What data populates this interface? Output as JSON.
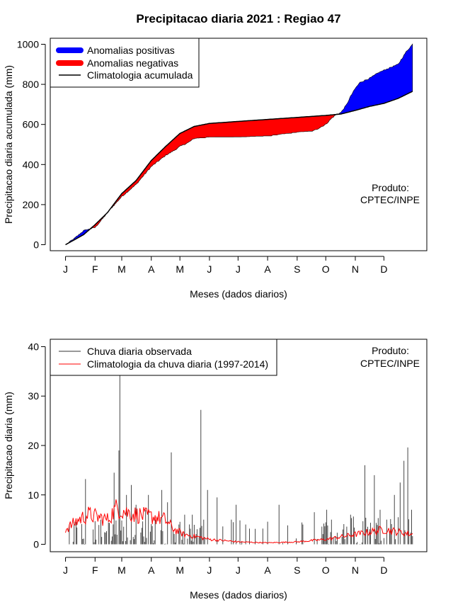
{
  "title": "Precipitacao diaria 2021 : Regiao 47",
  "colors": {
    "positive": "#0000ff",
    "negative": "#ff0000",
    "observed": "#333333",
    "climatology": "#ff0000"
  },
  "months": [
    "J",
    "F",
    "M",
    "A",
    "M",
    "J",
    "J",
    "A",
    "S",
    "O",
    "N",
    "D"
  ],
  "chart_data": [
    {
      "type": "area",
      "xlabel": "Meses (dados diarios)",
      "ylabel": "Precipitacao diaria acumulada (mm)",
      "yticks": [
        0,
        200,
        400,
        600,
        800,
        1000
      ],
      "ylim": [
        -30,
        1030
      ],
      "xlim": [
        -15,
        380
      ],
      "month_start_days": [
        1,
        32,
        60,
        91,
        121,
        152,
        182,
        213,
        244,
        274,
        305,
        335
      ],
      "legend": [
        "Anomalias positivas",
        "Anomalias negativas",
        "Climatologia acumulada"
      ],
      "credit": [
        "Produto:",
        "CPTEC/INPE"
      ],
      "climatology_keypoints": [
        [
          1,
          0
        ],
        [
          20,
          50
        ],
        [
          32,
          100
        ],
        [
          45,
          160
        ],
        [
          60,
          255
        ],
        [
          75,
          320
        ],
        [
          91,
          420
        ],
        [
          106,
          490
        ],
        [
          121,
          555
        ],
        [
          136,
          590
        ],
        [
          152,
          605
        ],
        [
          182,
          615
        ],
        [
          213,
          625
        ],
        [
          244,
          635
        ],
        [
          274,
          645
        ],
        [
          290,
          652
        ],
        [
          305,
          670
        ],
        [
          320,
          690
        ],
        [
          335,
          705
        ],
        [
          350,
          730
        ],
        [
          365,
          765
        ]
      ],
      "observed_keypoints": [
        [
          1,
          0
        ],
        [
          10,
          30
        ],
        [
          20,
          70
        ],
        [
          32,
          85
        ],
        [
          40,
          130
        ],
        [
          45,
          160
        ],
        [
          60,
          240
        ],
        [
          75,
          300
        ],
        [
          91,
          390
        ],
        [
          106,
          445
        ],
        [
          115,
          470
        ],
        [
          121,
          490
        ],
        [
          130,
          510
        ],
        [
          136,
          530
        ],
        [
          152,
          535
        ],
        [
          170,
          535
        ],
        [
          182,
          535
        ],
        [
          200,
          540
        ],
        [
          213,
          540
        ],
        [
          228,
          550
        ],
        [
          244,
          560
        ],
        [
          260,
          565
        ],
        [
          274,
          600
        ],
        [
          280,
          630
        ],
        [
          285,
          650
        ],
        [
          290,
          660
        ],
        [
          296,
          700
        ],
        [
          300,
          740
        ],
        [
          305,
          780
        ],
        [
          310,
          810
        ],
        [
          320,
          830
        ],
        [
          330,
          860
        ],
        [
          340,
          880
        ],
        [
          350,
          900
        ],
        [
          358,
          960
        ],
        [
          365,
          1000
        ]
      ]
    },
    {
      "type": "bar",
      "xlabel": "Meses (dados diarios)",
      "ylabel": "Precipitacao diaria (mm)",
      "yticks": [
        0,
        10,
        20,
        30,
        40
      ],
      "ylim": [
        -1.5,
        41.5
      ],
      "xlim": [
        -15,
        380
      ],
      "legend": [
        "Chuva diaria observada",
        "Climatologia da chuva diaria (1997-2014)"
      ],
      "credit": [
        "Produto:",
        "CPTEC/INPE"
      ],
      "observed_peaks": [
        [
          5,
          4
        ],
        [
          12,
          4.5
        ],
        [
          22,
          13.2
        ],
        [
          30,
          3
        ],
        [
          38,
          5
        ],
        [
          52,
          14.5
        ],
        [
          57,
          19
        ],
        [
          58,
          35
        ],
        [
          65,
          10
        ],
        [
          70,
          12
        ],
        [
          75,
          8
        ],
        [
          85,
          7
        ],
        [
          88,
          10
        ],
        [
          95,
          5
        ],
        [
          102,
          11
        ],
        [
          108,
          8.5
        ],
        [
          112,
          18.6
        ],
        [
          120,
          4
        ],
        [
          126,
          6
        ],
        [
          134,
          6
        ],
        [
          143,
          27.2
        ],
        [
          150,
          11
        ],
        [
          160,
          9.5
        ],
        [
          175,
          5
        ],
        [
          180,
          8
        ],
        [
          190,
          4
        ],
        [
          225,
          8
        ],
        [
          250,
          4
        ],
        [
          262,
          6.5
        ],
        [
          275,
          7
        ],
        [
          280,
          5
        ],
        [
          292,
          3
        ],
        [
          300,
          6
        ],
        [
          315,
          16
        ],
        [
          325,
          14
        ],
        [
          331,
          7
        ],
        [
          338,
          5
        ],
        [
          346,
          10
        ],
        [
          352,
          12.5
        ],
        [
          356,
          16.9
        ],
        [
          360,
          19.6
        ],
        [
          364,
          7
        ]
      ],
      "climatology_keypoints": [
        [
          1,
          3
        ],
        [
          15,
          5
        ],
        [
          25,
          6
        ],
        [
          45,
          5
        ],
        [
          55,
          7.5
        ],
        [
          65,
          6.5
        ],
        [
          75,
          6
        ],
        [
          95,
          5.5
        ],
        [
          105,
          5
        ],
        [
          115,
          3
        ],
        [
          125,
          2
        ],
        [
          140,
          1.5
        ],
        [
          152,
          1
        ],
        [
          182,
          0.5
        ],
        [
          213,
          0.3
        ],
        [
          244,
          0.5
        ],
        [
          274,
          1
        ],
        [
          305,
          2
        ],
        [
          320,
          2.5
        ],
        [
          335,
          3
        ],
        [
          350,
          2.5
        ],
        [
          365,
          2
        ]
      ]
    }
  ]
}
